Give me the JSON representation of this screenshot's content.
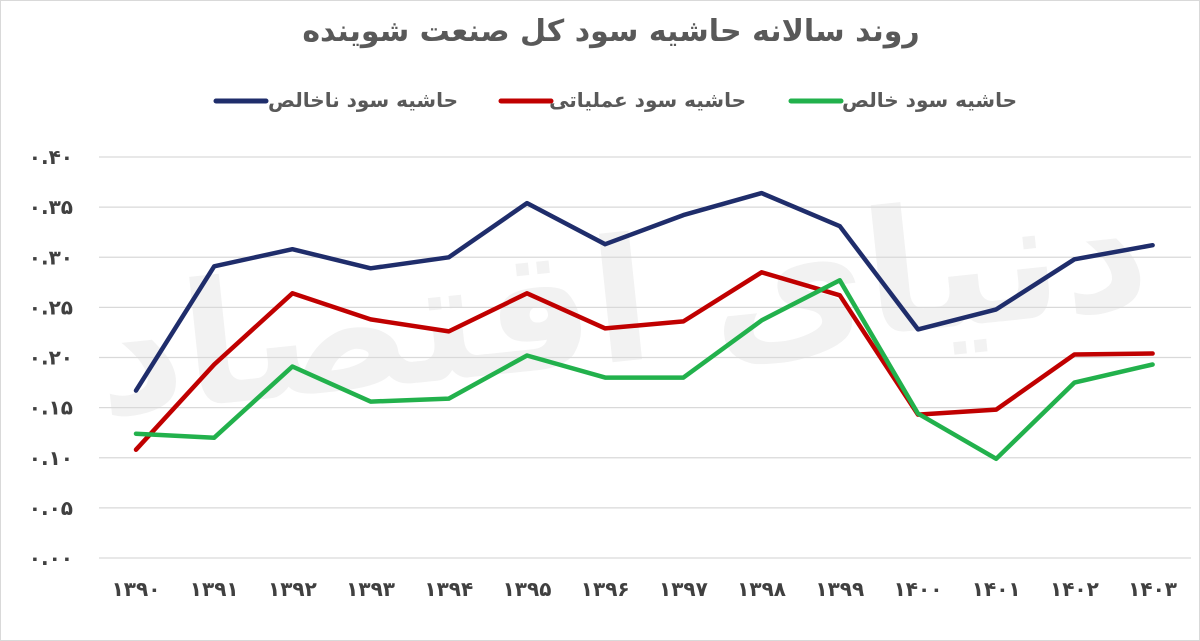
{
  "chart_data": {
    "type": "line",
    "title": "روند سالانه حاشیه سود کل صنعت شوینده",
    "watermark": "دنیای اقتصاد",
    "categories": [
      "۱۳۹۰",
      "۱۳۹۱",
      "۱۳۹۲",
      "۱۳۹۳",
      "۱۳۹۴",
      "۱۳۹۵",
      "۱۳۹۶",
      "۱۳۹۷",
      "۱۳۹۸",
      "۱۳۹۹",
      "۱۴۰۰",
      "۱۴۰۱",
      "۱۴۰۲",
      "۱۴۰۳"
    ],
    "ylim": [
      0,
      0.4
    ],
    "yticks": [
      0,
      0.05,
      0.1,
      0.15,
      0.2,
      0.25,
      0.3,
      0.35,
      0.4
    ],
    "ytick_labels": [
      "۰.۰۰",
      "۰.۰۵",
      "۰.۱۰",
      "۰.۱۵",
      "۰.۲۰",
      "۰.۲۵",
      "۰.۳۰",
      "۰.۳۵",
      "۰.۴۰"
    ],
    "grid": true,
    "legend_position": "top",
    "series": [
      {
        "name": "حاشیه سود ناخالص",
        "color": "#1f2d6b",
        "values": [
          0.167,
          0.291,
          0.308,
          0.289,
          0.3,
          0.354,
          0.313,
          0.342,
          0.364,
          0.331,
          0.228,
          0.248,
          0.298,
          0.312
        ]
      },
      {
        "name": "حاشیه سود عملیاتی",
        "color": "#c00000",
        "values": [
          0.108,
          0.193,
          0.264,
          0.238,
          0.226,
          0.264,
          0.229,
          0.236,
          0.285,
          0.262,
          0.143,
          0.148,
          0.203,
          0.204
        ]
      },
      {
        "name": "حاشیه سود خالص",
        "color": "#22b14c",
        "values": [
          0.124,
          0.12,
          0.191,
          0.156,
          0.159,
          0.202,
          0.18,
          0.18,
          0.237,
          0.277,
          0.144,
          0.099,
          0.175,
          0.193
        ]
      }
    ]
  }
}
